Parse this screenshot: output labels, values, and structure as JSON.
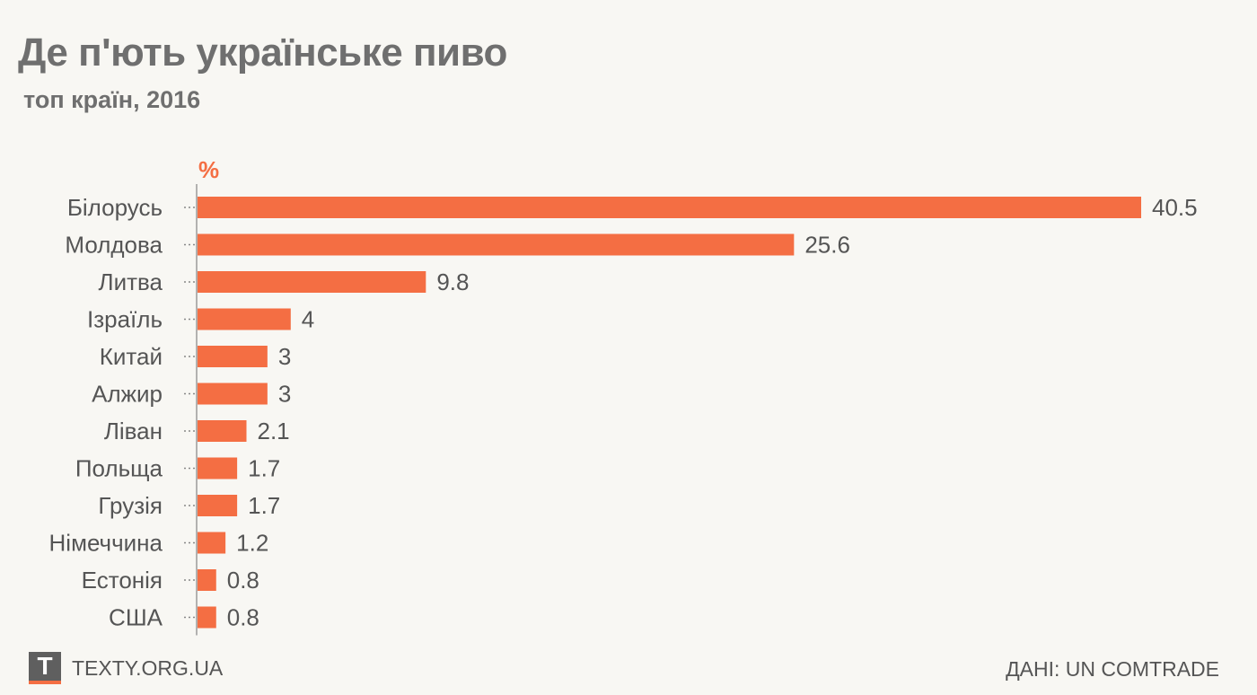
{
  "header": {
    "title": "Де п'ють українське пиво",
    "subtitle": "топ країн, 2016"
  },
  "footer": {
    "logo_letter": "T",
    "site": "TEXTY.ORG.UA",
    "source": "ДАНІ: UN COMTRADE"
  },
  "colors": {
    "bar": "#f46e43",
    "text": "#555555",
    "title": "#6f6f6f",
    "background": "#f8f7f3"
  },
  "chart_data": {
    "type": "bar",
    "orientation": "horizontal",
    "unit": "%",
    "categories": [
      "Білорусь",
      "Молдова",
      "Литва",
      "Ізраїль",
      "Китай",
      "Алжир",
      "Ліван",
      "Польща",
      "Грузія",
      "Німеччина",
      "Естонія",
      "США"
    ],
    "values": [
      40.5,
      25.6,
      9.8,
      4,
      3,
      3,
      2.1,
      1.7,
      1.7,
      1.2,
      0.8,
      0.8
    ],
    "value_labels": [
      "40.5",
      "25.6",
      "9.8",
      "4",
      "3",
      "3",
      "2.1",
      "1.7",
      "1.7",
      "1.2",
      "0.8",
      "0.8"
    ],
    "xlim": [
      0,
      40.5
    ],
    "grid": false,
    "legend": "none"
  }
}
